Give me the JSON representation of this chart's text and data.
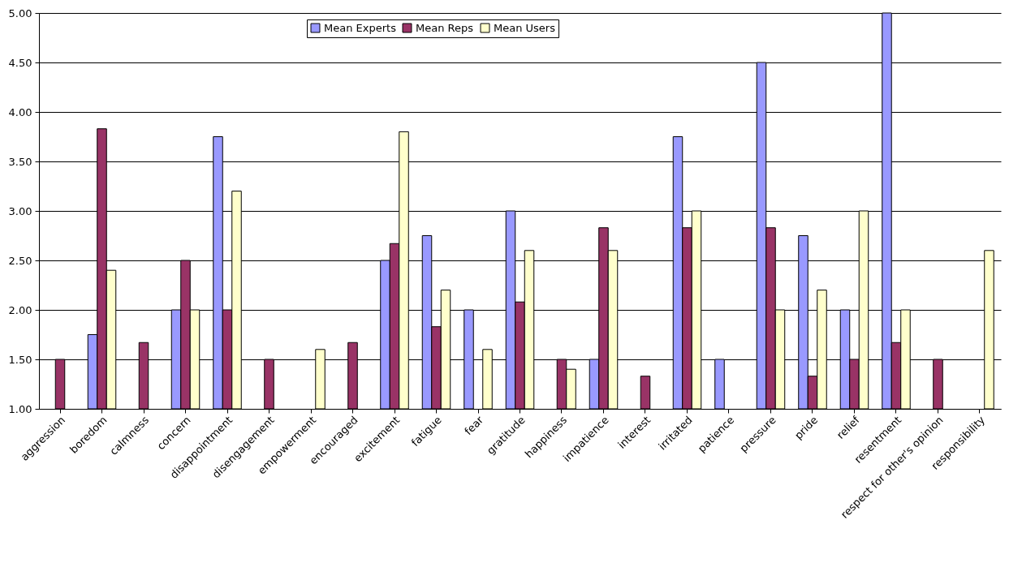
{
  "chart_data": {
    "type": "bar",
    "categories": [
      "aggression",
      "boredom",
      "calmness",
      "concern",
      "disappointment",
      "disengagement",
      "empowerment",
      "encouraged",
      "excitement",
      "fatigue",
      "fear",
      "gratitude",
      "happiness",
      "impatience",
      "interest",
      "irritated",
      "patience",
      "pressure",
      "pride",
      "relief",
      "resentment",
      "respect for other's opinion",
      "responsibility"
    ],
    "series": [
      {
        "name": "Mean Experts",
        "color": "#9999ff",
        "values": [
          null,
          1.75,
          null,
          2.0,
          3.75,
          null,
          null,
          null,
          2.5,
          2.75,
          2.0,
          3.0,
          null,
          1.5,
          null,
          3.75,
          1.5,
          4.5,
          2.75,
          2.0,
          5.0,
          null,
          null
        ]
      },
      {
        "name": "Mean Reps",
        "color": "#993366",
        "values": [
          1.5,
          3.83,
          1.67,
          2.5,
          2.0,
          1.5,
          null,
          1.67,
          2.67,
          1.83,
          null,
          2.08,
          1.5,
          2.83,
          1.33,
          2.83,
          null,
          2.83,
          1.33,
          1.5,
          1.67,
          1.5,
          null
        ]
      },
      {
        "name": "Mean Users",
        "color": "#ffffcc",
        "values": [
          null,
          2.4,
          null,
          2.0,
          3.2,
          null,
          1.6,
          null,
          3.8,
          2.2,
          1.6,
          2.6,
          1.4,
          2.6,
          null,
          3.0,
          null,
          2.0,
          2.2,
          3.0,
          2.0,
          null,
          2.6
        ]
      }
    ],
    "ylim": [
      1,
      5
    ],
    "yticks": [
      {
        "value": 1,
        "label": "1.00"
      },
      {
        "value": 1.5,
        "label": "1.50"
      },
      {
        "value": 2,
        "label": "2.00"
      },
      {
        "value": 2.5,
        "label": "2.50"
      },
      {
        "value": 3,
        "label": "3.00"
      },
      {
        "value": 3.5,
        "label": "3.50"
      },
      {
        "value": 4,
        "label": "4.00"
      },
      {
        "value": 4.5,
        "label": "4.50"
      },
      {
        "value": 5,
        "label": "5.00"
      }
    ],
    "grid": "y",
    "legend": "top"
  }
}
